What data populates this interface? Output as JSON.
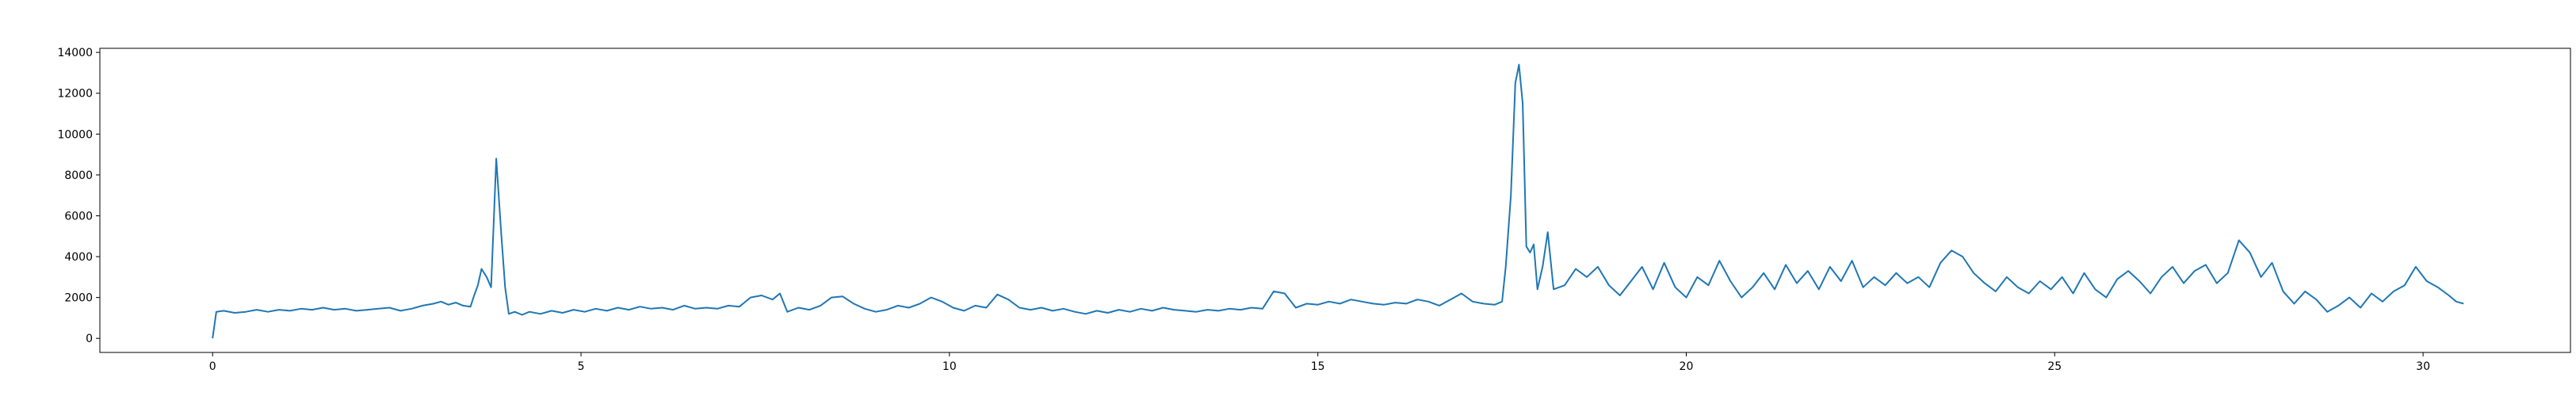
{
  "chart_data": {
    "type": "line",
    "title": "",
    "xlabel": "",
    "ylabel": "",
    "xlim": [
      -1.53,
      32.0
    ],
    "ylim": [
      -690,
      14200
    ],
    "x_ticks": [
      0,
      5,
      10,
      15,
      20,
      25,
      30
    ],
    "x_tick_labels": [
      "0",
      "5",
      "10",
      "15",
      "20",
      "25",
      "30"
    ],
    "y_ticks": [
      0,
      2000,
      4000,
      6000,
      8000,
      10000,
      12000,
      14000
    ],
    "y_tick_labels": [
      "0",
      "2000",
      "4000",
      "6000",
      "8000",
      "10000",
      "12000",
      "14000"
    ],
    "grid": false,
    "legend": "none",
    "series": [
      {
        "color": "#1f77b4",
        "points": [
          [
            0.0,
            0
          ],
          [
            0.05,
            1300
          ],
          [
            0.15,
            1350
          ],
          [
            0.3,
            1250
          ],
          [
            0.45,
            1300
          ],
          [
            0.6,
            1400
          ],
          [
            0.75,
            1300
          ],
          [
            0.9,
            1400
          ],
          [
            1.05,
            1350
          ],
          [
            1.2,
            1450
          ],
          [
            1.35,
            1400
          ],
          [
            1.5,
            1500
          ],
          [
            1.65,
            1400
          ],
          [
            1.8,
            1450
          ],
          [
            1.95,
            1350
          ],
          [
            2.1,
            1400
          ],
          [
            2.25,
            1450
          ],
          [
            2.4,
            1500
          ],
          [
            2.55,
            1350
          ],
          [
            2.7,
            1450
          ],
          [
            2.85,
            1600
          ],
          [
            3.0,
            1700
          ],
          [
            3.1,
            1800
          ],
          [
            3.2,
            1650
          ],
          [
            3.3,
            1750
          ],
          [
            3.4,
            1600
          ],
          [
            3.5,
            1550
          ],
          [
            3.55,
            2100
          ],
          [
            3.6,
            2600
          ],
          [
            3.65,
            3400
          ],
          [
            3.72,
            3000
          ],
          [
            3.78,
            2500
          ],
          [
            3.85,
            8800
          ],
          [
            3.92,
            5000
          ],
          [
            3.97,
            2500
          ],
          [
            4.02,
            1200
          ],
          [
            4.1,
            1300
          ],
          [
            4.2,
            1150
          ],
          [
            4.3,
            1300
          ],
          [
            4.45,
            1200
          ],
          [
            4.6,
            1350
          ],
          [
            4.75,
            1250
          ],
          [
            4.9,
            1400
          ],
          [
            5.05,
            1300
          ],
          [
            5.2,
            1450
          ],
          [
            5.35,
            1350
          ],
          [
            5.5,
            1500
          ],
          [
            5.65,
            1400
          ],
          [
            5.8,
            1550
          ],
          [
            5.95,
            1450
          ],
          [
            6.1,
            1500
          ],
          [
            6.25,
            1400
          ],
          [
            6.4,
            1600
          ],
          [
            6.55,
            1450
          ],
          [
            6.7,
            1500
          ],
          [
            6.85,
            1450
          ],
          [
            7.0,
            1600
          ],
          [
            7.15,
            1550
          ],
          [
            7.3,
            2000
          ],
          [
            7.45,
            2100
          ],
          [
            7.6,
            1900
          ],
          [
            7.7,
            2200
          ],
          [
            7.8,
            1300
          ],
          [
            7.95,
            1500
          ],
          [
            8.1,
            1400
          ],
          [
            8.25,
            1600
          ],
          [
            8.4,
            2000
          ],
          [
            8.55,
            2050
          ],
          [
            8.7,
            1700
          ],
          [
            8.85,
            1450
          ],
          [
            9.0,
            1300
          ],
          [
            9.15,
            1400
          ],
          [
            9.3,
            1600
          ],
          [
            9.45,
            1500
          ],
          [
            9.6,
            1700
          ],
          [
            9.75,
            2000
          ],
          [
            9.9,
            1800
          ],
          [
            10.05,
            1500
          ],
          [
            10.2,
            1350
          ],
          [
            10.35,
            1600
          ],
          [
            10.5,
            1500
          ],
          [
            10.65,
            2150
          ],
          [
            10.8,
            1900
          ],
          [
            10.95,
            1500
          ],
          [
            11.1,
            1400
          ],
          [
            11.25,
            1500
          ],
          [
            11.4,
            1350
          ],
          [
            11.55,
            1450
          ],
          [
            11.7,
            1300
          ],
          [
            11.85,
            1200
          ],
          [
            12.0,
            1350
          ],
          [
            12.15,
            1250
          ],
          [
            12.3,
            1400
          ],
          [
            12.45,
            1300
          ],
          [
            12.6,
            1450
          ],
          [
            12.75,
            1350
          ],
          [
            12.9,
            1500
          ],
          [
            13.05,
            1400
          ],
          [
            13.2,
            1350
          ],
          [
            13.35,
            1300
          ],
          [
            13.5,
            1400
          ],
          [
            13.65,
            1350
          ],
          [
            13.8,
            1450
          ],
          [
            13.95,
            1400
          ],
          [
            14.1,
            1500
          ],
          [
            14.25,
            1450
          ],
          [
            14.4,
            2300
          ],
          [
            14.55,
            2200
          ],
          [
            14.7,
            1500
          ],
          [
            14.85,
            1700
          ],
          [
            15.0,
            1650
          ],
          [
            15.15,
            1800
          ],
          [
            15.3,
            1700
          ],
          [
            15.45,
            1900
          ],
          [
            15.6,
            1800
          ],
          [
            15.75,
            1700
          ],
          [
            15.9,
            1650
          ],
          [
            16.05,
            1750
          ],
          [
            16.2,
            1700
          ],
          [
            16.35,
            1900
          ],
          [
            16.5,
            1800
          ],
          [
            16.65,
            1600
          ],
          [
            16.8,
            1900
          ],
          [
            16.95,
            2200
          ],
          [
            17.1,
            1800
          ],
          [
            17.25,
            1700
          ],
          [
            17.4,
            1650
          ],
          [
            17.5,
            1800
          ],
          [
            17.55,
            3500
          ],
          [
            17.62,
            7000
          ],
          [
            17.68,
            12500
          ],
          [
            17.73,
            13400
          ],
          [
            17.78,
            11500
          ],
          [
            17.83,
            4500
          ],
          [
            17.88,
            4200
          ],
          [
            17.93,
            4600
          ],
          [
            17.98,
            2400
          ],
          [
            18.05,
            3500
          ],
          [
            18.12,
            5200
          ],
          [
            18.2,
            2400
          ],
          [
            18.35,
            2600
          ],
          [
            18.5,
            3400
          ],
          [
            18.65,
            3000
          ],
          [
            18.8,
            3500
          ],
          [
            18.95,
            2600
          ],
          [
            19.1,
            2100
          ],
          [
            19.25,
            2800
          ],
          [
            19.4,
            3500
          ],
          [
            19.55,
            2400
          ],
          [
            19.7,
            3700
          ],
          [
            19.85,
            2500
          ],
          [
            20.0,
            2000
          ],
          [
            20.15,
            3000
          ],
          [
            20.3,
            2600
          ],
          [
            20.45,
            3800
          ],
          [
            20.6,
            2800
          ],
          [
            20.75,
            2000
          ],
          [
            20.9,
            2500
          ],
          [
            21.05,
            3200
          ],
          [
            21.2,
            2400
          ],
          [
            21.35,
            3600
          ],
          [
            21.5,
            2700
          ],
          [
            21.65,
            3300
          ],
          [
            21.8,
            2400
          ],
          [
            21.95,
            3500
          ],
          [
            22.1,
            2800
          ],
          [
            22.25,
            3800
          ],
          [
            22.4,
            2500
          ],
          [
            22.55,
            3000
          ],
          [
            22.7,
            2600
          ],
          [
            22.85,
            3200
          ],
          [
            23.0,
            2700
          ],
          [
            23.15,
            3000
          ],
          [
            23.3,
            2500
          ],
          [
            23.45,
            3700
          ],
          [
            23.6,
            4300
          ],
          [
            23.75,
            4000
          ],
          [
            23.9,
            3200
          ],
          [
            24.05,
            2700
          ],
          [
            24.2,
            2300
          ],
          [
            24.35,
            3000
          ],
          [
            24.5,
            2500
          ],
          [
            24.65,
            2200
          ],
          [
            24.8,
            2800
          ],
          [
            24.95,
            2400
          ],
          [
            25.1,
            3000
          ],
          [
            25.25,
            2200
          ],
          [
            25.4,
            3200
          ],
          [
            25.55,
            2400
          ],
          [
            25.7,
            2000
          ],
          [
            25.85,
            2900
          ],
          [
            26.0,
            3300
          ],
          [
            26.15,
            2800
          ],
          [
            26.3,
            2200
          ],
          [
            26.45,
            3000
          ],
          [
            26.6,
            3500
          ],
          [
            26.75,
            2700
          ],
          [
            26.9,
            3300
          ],
          [
            27.05,
            3600
          ],
          [
            27.2,
            2700
          ],
          [
            27.35,
            3200
          ],
          [
            27.5,
            4800
          ],
          [
            27.65,
            4200
          ],
          [
            27.8,
            3000
          ],
          [
            27.95,
            3700
          ],
          [
            28.1,
            2300
          ],
          [
            28.25,
            1700
          ],
          [
            28.4,
            2300
          ],
          [
            28.55,
            1900
          ],
          [
            28.7,
            1300
          ],
          [
            28.85,
            1600
          ],
          [
            29.0,
            2000
          ],
          [
            29.15,
            1500
          ],
          [
            29.3,
            2200
          ],
          [
            29.45,
            1800
          ],
          [
            29.6,
            2300
          ],
          [
            29.75,
            2600
          ],
          [
            29.9,
            3500
          ],
          [
            30.05,
            2800
          ],
          [
            30.2,
            2500
          ],
          [
            30.35,
            2100
          ],
          [
            30.45,
            1800
          ],
          [
            30.55,
            1700
          ]
        ]
      }
    ]
  }
}
